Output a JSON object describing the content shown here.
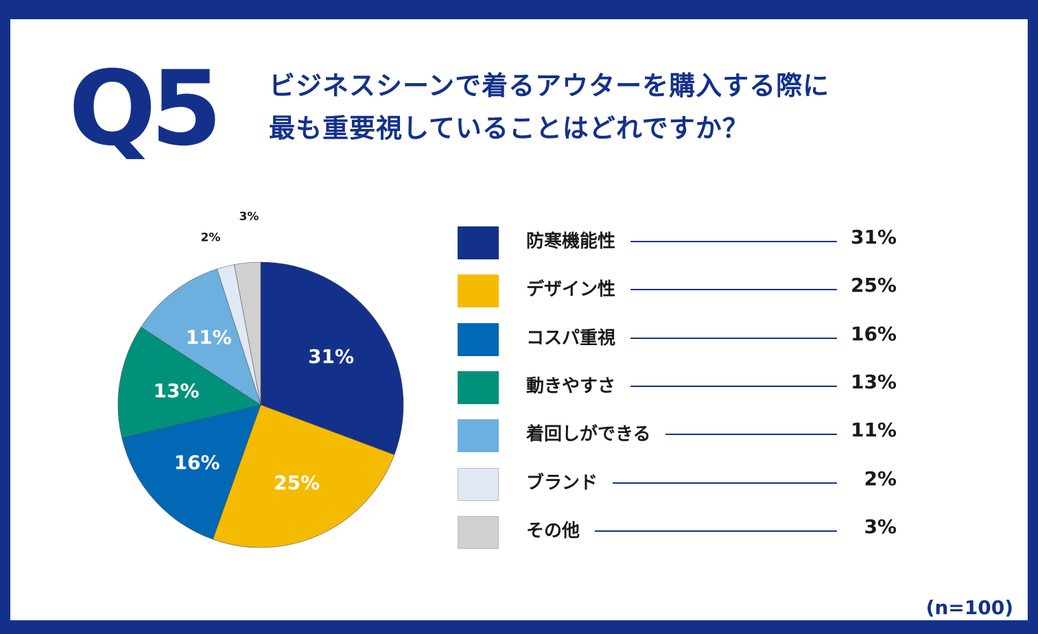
{
  "question": {
    "label": "Q5",
    "line1": "ビジネスシーンで着るアウターを購入する際に",
    "line2": "最も重要視していることはどれですか？"
  },
  "note": "(n=100)",
  "colors": {
    "frame": "#13318a",
    "line": "#13318a"
  },
  "chart_data": {
    "type": "pie",
    "title": "ビジネスシーンで着るアウターを購入する際に最も重要視していることはどれですか？",
    "unit": "%",
    "slices": [
      {
        "label": "防寒機能性",
        "value": 31,
        "display": "31%",
        "color": "#13318a"
      },
      {
        "label": "デザイン性",
        "value": 25,
        "display": "25%",
        "color": "#f5bb00"
      },
      {
        "label": "コスパ重視",
        "value": 16,
        "display": "16%",
        "color": "#0068b4"
      },
      {
        "label": "動きやすさ",
        "value": 13,
        "display": "13%",
        "color": "#00917a"
      },
      {
        "label": "着回しができる",
        "value": 11,
        "display": "11%",
        "color": "#6cb0e0"
      },
      {
        "label": "ブランド",
        "value": 2,
        "display": "2%",
        "color": "#dfe8f4"
      },
      {
        "label": "その他",
        "value": 3,
        "display": "3%",
        "color": "#d0d0d0"
      }
    ]
  }
}
